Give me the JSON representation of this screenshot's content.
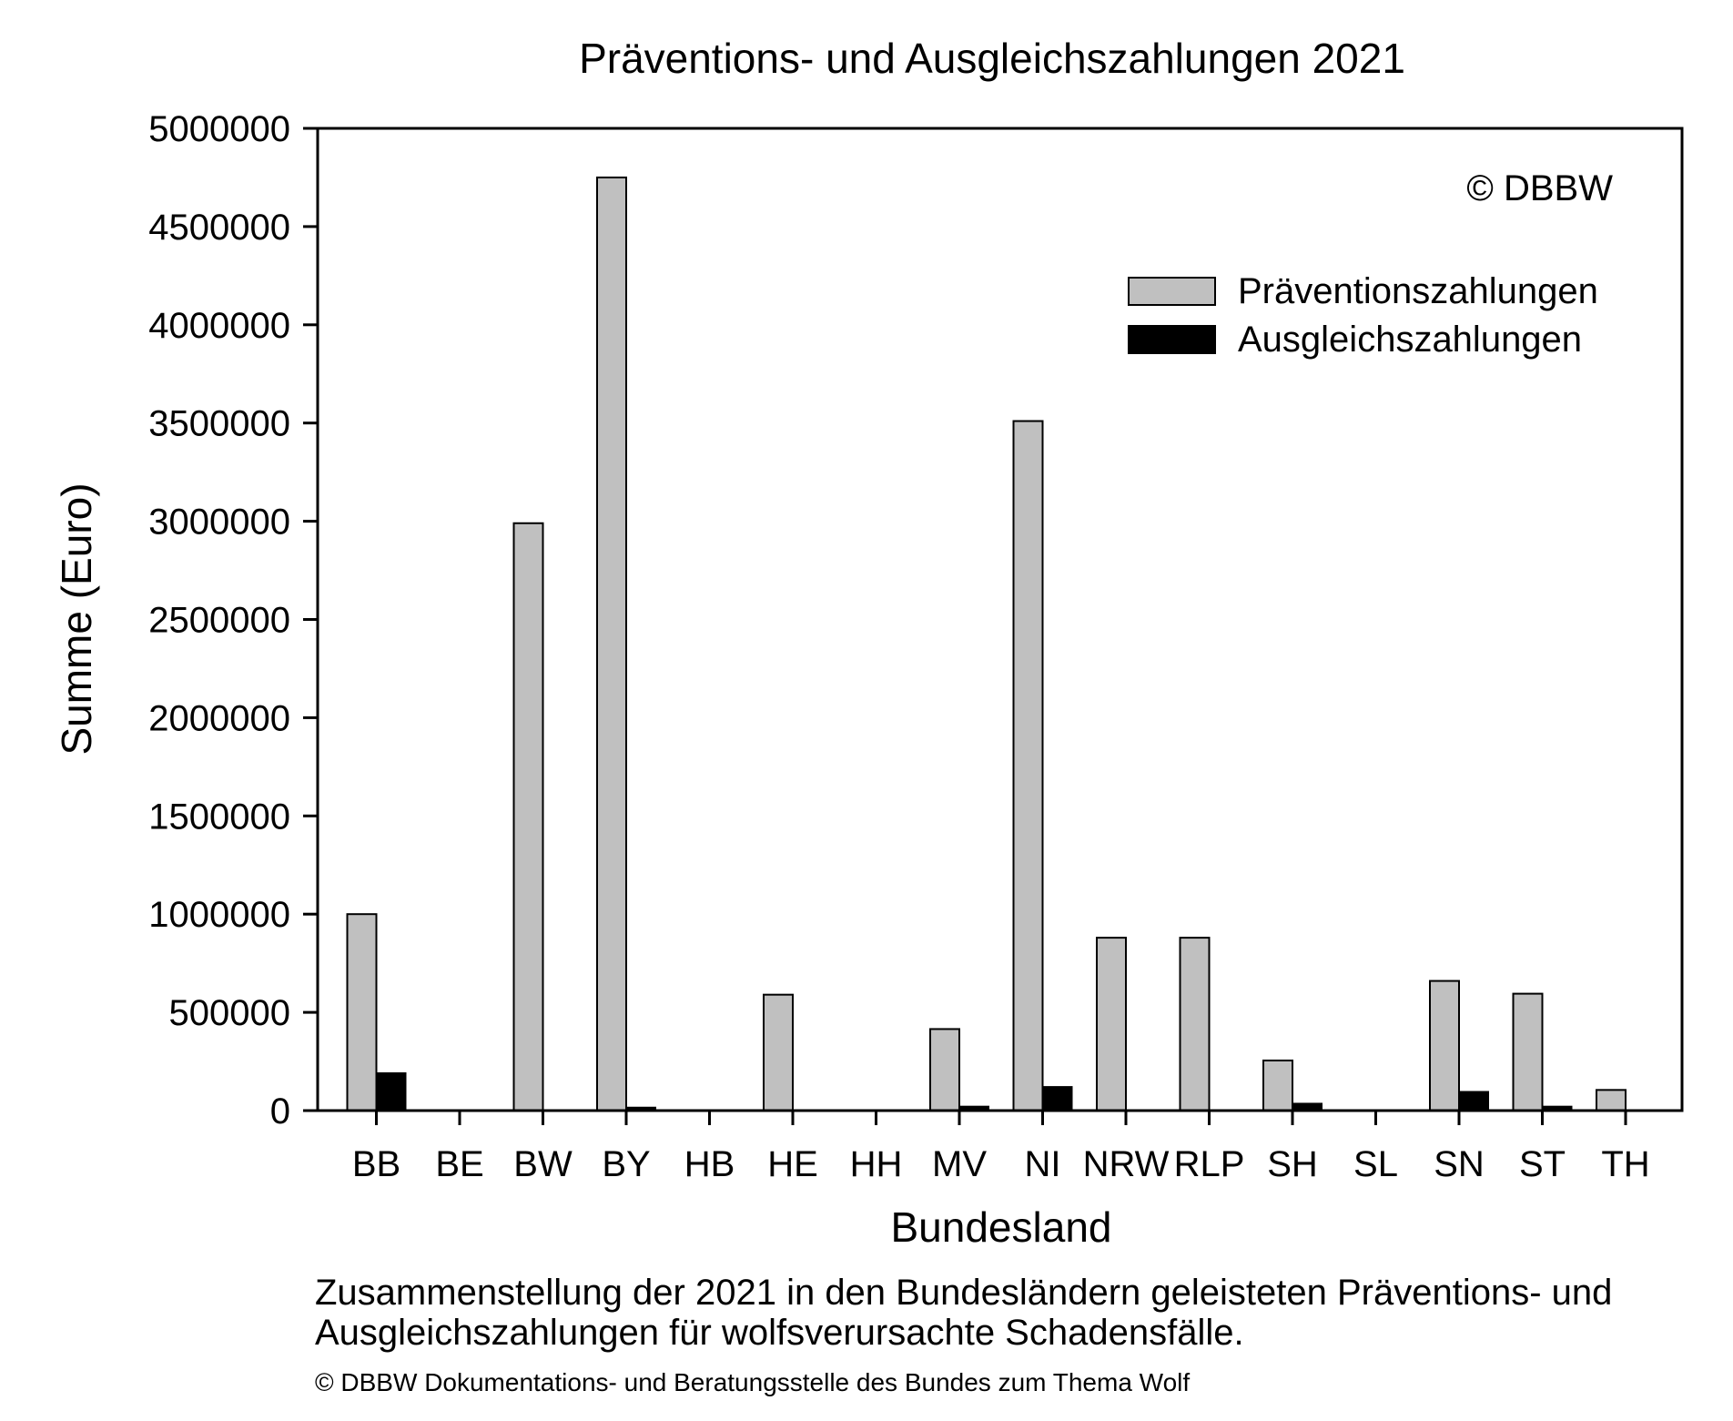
{
  "chart_data": {
    "type": "bar",
    "title": "Präventions- und Ausgleichszahlungen 2021",
    "xlabel": "Bundesland",
    "ylabel": "Summe (Euro)",
    "ylim": [
      0,
      5000000
    ],
    "yticks": [
      "0",
      "500000",
      "1000000",
      "1500000",
      "2000000",
      "2500000",
      "3000000",
      "3500000",
      "4000000",
      "4500000",
      "5000000"
    ],
    "categories": [
      "BB",
      "BE",
      "BW",
      "BY",
      "HB",
      "HE",
      "HH",
      "MV",
      "NI",
      "NRW",
      "RLP",
      "SH",
      "SL",
      "SN",
      "ST",
      "TH"
    ],
    "series": [
      {
        "name": "Präventionszahlungen",
        "color": "#c0c0c0",
        "values": [
          1000000,
          0,
          2990000,
          4750000,
          0,
          590000,
          0,
          415000,
          3510000,
          880000,
          880000,
          255000,
          0,
          660000,
          595000,
          105000
        ]
      },
      {
        "name": "Ausgleichszahlungen",
        "color": "#000000",
        "values": [
          190000,
          0,
          0,
          15000,
          0,
          0,
          0,
          20000,
          120000,
          0,
          0,
          35000,
          0,
          95000,
          20000,
          0
        ]
      }
    ],
    "grid": false,
    "legend_position": "top-right",
    "annotation": "© DBBW"
  },
  "caption": {
    "line1": "Zusammenstellung der 2021 in den Bundesländern geleisteten Präventions- und",
    "line2": "Ausgleichszahlungen für wolfsverursachte Schadensfälle.",
    "credit": "© DBBW Dokumentations- und Beratungsstelle des Bundes zum Thema Wolf"
  }
}
